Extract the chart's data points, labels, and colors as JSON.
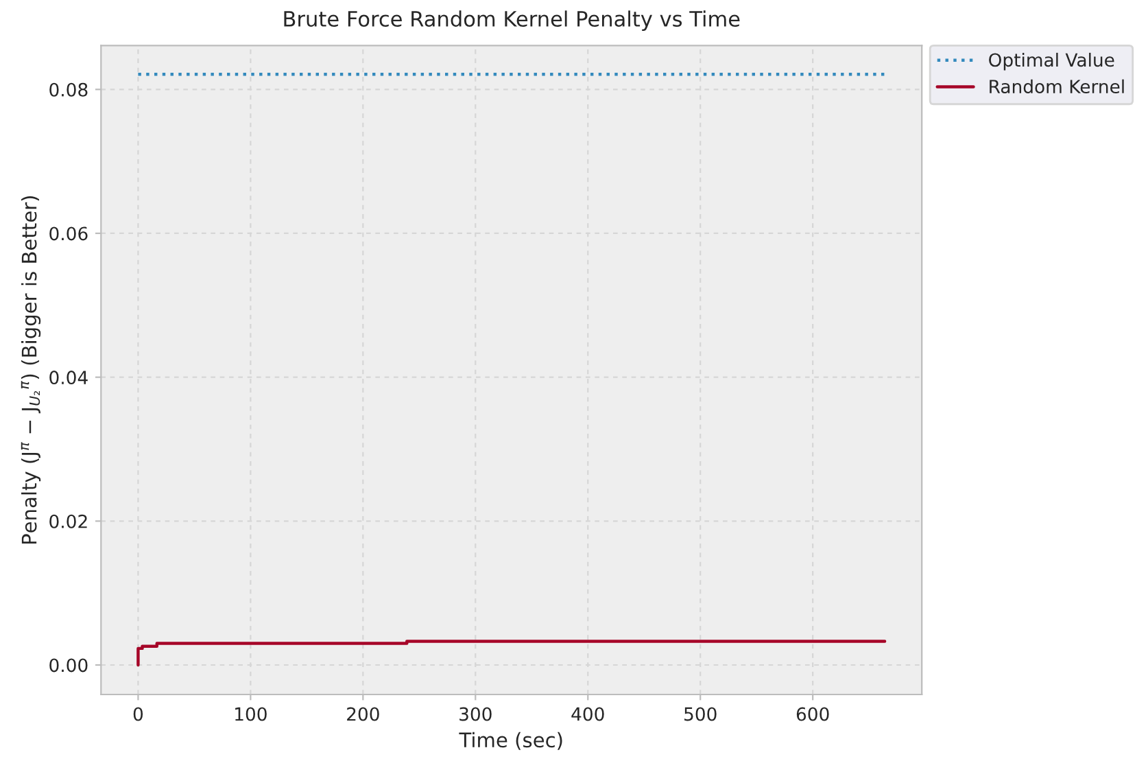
{
  "chart_data": {
    "type": "line",
    "title": "Brute Force Random Kernel Penalty vs Time",
    "xlabel": "Time (sec)",
    "ylabel": "Penalty (J$^{π}$ − J$_{U₂}$$^{π}$) (Bigger is Better)",
    "series": [
      {
        "name": "Optimal Value",
        "color": "#348abd",
        "line_style": "dotted",
        "x": [
          0,
          664
        ],
        "values": [
          0.0821,
          0.0821
        ]
      },
      {
        "name": "Random Kernel",
        "type": "step",
        "color": "#a60628",
        "line_style": "solid",
        "x": [
          0,
          0,
          3.7,
          16.7,
          239,
          664
        ],
        "values": [
          0,
          0.0023,
          0.0026,
          0.003,
          0.0033,
          0.0033
        ]
      }
    ],
    "xlim": [
      -33,
      697
    ],
    "xticks": [
      0,
      100,
      200,
      300,
      400,
      500,
      600
    ],
    "ylim": [
      -0.0041,
      0.0861
    ],
    "yticks": [
      {
        "value": 0,
        "label": "0.00"
      },
      {
        "value": 0.02,
        "label": "0.02"
      },
      {
        "value": 0.04,
        "label": "0.04"
      },
      {
        "value": 0.06,
        "label": "0.06"
      },
      {
        "value": 0.08,
        "label": "0.08"
      }
    ],
    "grid": true,
    "legend": "top right outside",
    "marker": "none"
  }
}
